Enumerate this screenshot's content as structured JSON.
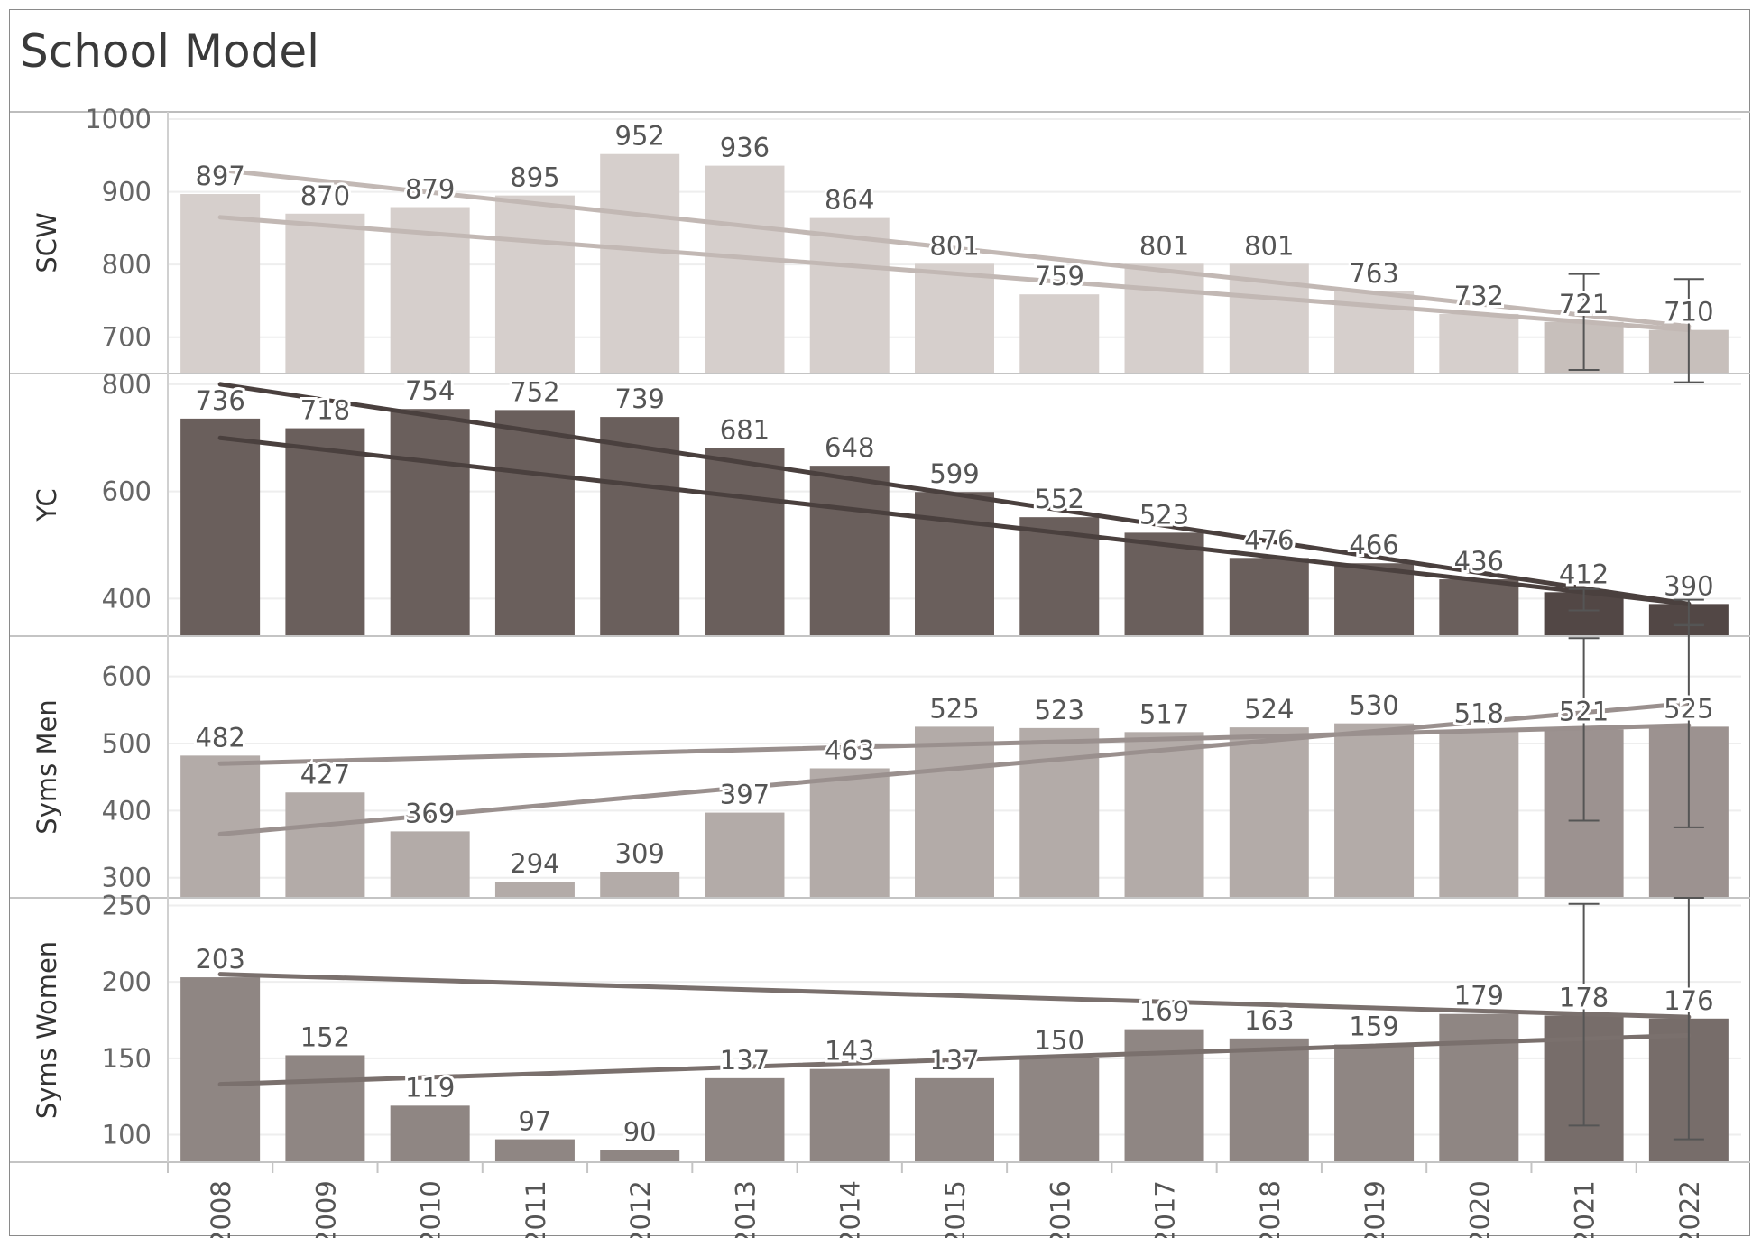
{
  "title": "School Model",
  "chart_data": {
    "type": "bar",
    "categories": [
      "2008",
      "2009",
      "2010",
      "2011",
      "2012",
      "2013",
      "2014",
      "2015",
      "2016",
      "2017",
      "2018",
      "2019",
      "2020",
      "2021",
      "2022"
    ],
    "panels": [
      {
        "name": "SCW",
        "values": [
          897,
          870,
          879,
          895,
          952,
          936,
          864,
          801,
          759,
          801,
          801,
          763,
          732,
          721,
          710
        ],
        "color": "#d6cfcc",
        "forecast_color": "#c7bfbb",
        "line_color": "#c2b8b4",
        "ylim": [
          650,
          1010
        ],
        "yticks": [
          700,
          800,
          900,
          1000
        ],
        "trend_lines": [
          [
            930,
            715
          ],
          [
            865,
            710
          ]
        ],
        "error_bars": [
          [
            655,
            787
          ],
          [
            638,
            780
          ]
        ]
      },
      {
        "name": "YC",
        "values": [
          736,
          718,
          754,
          752,
          739,
          681,
          648,
          599,
          552,
          523,
          476,
          466,
          436,
          412,
          390
        ],
        "color": "#6a5f5c",
        "forecast_color": "#524745",
        "line_color": "#4a403e",
        "ylim": [
          330,
          820
        ],
        "yticks": [
          400,
          600,
          800
        ],
        "trend_lines": [
          [
            800,
            390
          ],
          [
            700,
            390
          ]
        ],
        "error_bars": [
          [
            378,
            418
          ],
          [
            350,
            398
          ]
        ]
      },
      {
        "name": "Syms Men",
        "values": [
          482,
          427,
          369,
          294,
          309,
          397,
          463,
          525,
          523,
          517,
          524,
          530,
          518,
          521,
          525
        ],
        "color": "#b3aba8",
        "forecast_color": "#9c9290",
        "line_color": "#9a908e",
        "ylim": [
          270,
          660
        ],
        "yticks": [
          300,
          400,
          500,
          600
        ],
        "trend_lines": [
          [
            470,
            527
          ],
          [
            365,
            560
          ]
        ],
        "error_bars": [
          [
            385,
            657
          ],
          [
            375,
            678
          ]
        ]
      },
      {
        "name": "Syms Women",
        "values": [
          203,
          152,
          119,
          97,
          90,
          137,
          143,
          137,
          150,
          169,
          163,
          159,
          179,
          178,
          176
        ],
        "color": "#8f8683",
        "forecast_color": "#776d6a",
        "line_color": "#7a706d",
        "ylim": [
          82,
          255
        ],
        "yticks": [
          100,
          150,
          200,
          250
        ],
        "trend_lines": [
          [
            205,
            177
          ],
          [
            133,
            165
          ]
        ],
        "error_bars": [
          [
            106,
            251
          ],
          [
            97,
            255
          ]
        ]
      }
    ]
  }
}
